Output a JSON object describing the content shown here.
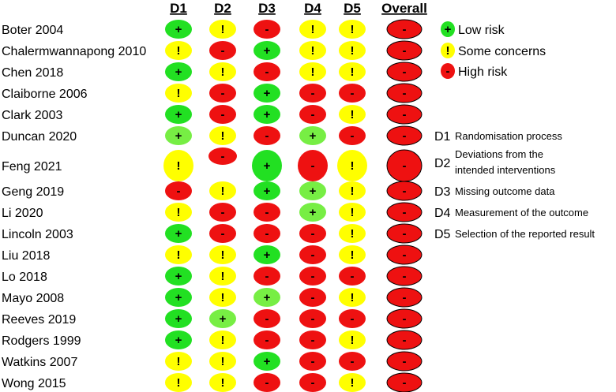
{
  "chart_data": {
    "type": "table",
    "columns": [
      "D1",
      "D2",
      "D3",
      "D4",
      "D5",
      "Overall"
    ],
    "studies": [
      {
        "name": "Boter 2004",
        "judgements": [
          "low",
          "some",
          "high",
          "some",
          "some",
          "high"
        ]
      },
      {
        "name": "Chalermwannapong 2010",
        "judgements": [
          "some",
          "high",
          "low",
          "some",
          "some",
          "high"
        ]
      },
      {
        "name": "Chen 2018",
        "judgements": [
          "low",
          "some",
          "high",
          "some",
          "some",
          "high"
        ]
      },
      {
        "name": "Claiborne 2006",
        "judgements": [
          "some",
          "high",
          "low",
          "high",
          "high",
          "high"
        ]
      },
      {
        "name": "Clark 2003",
        "judgements": [
          "low",
          "high",
          "low",
          "high",
          "some",
          "high"
        ]
      },
      {
        "name": "Duncan 2020",
        "judgements": [
          "low",
          "some",
          "high",
          "low",
          "high",
          "high"
        ]
      },
      {
        "name": "Feng 2021",
        "judgements": [
          "some",
          "high",
          "low",
          "high",
          "some",
          "high"
        ]
      },
      {
        "name": "Geng 2019",
        "judgements": [
          "high",
          "some",
          "low",
          "low",
          "some",
          "high"
        ]
      },
      {
        "name": "Li 2020",
        "judgements": [
          "some",
          "high",
          "high",
          "low",
          "some",
          "high"
        ]
      },
      {
        "name": "Lincoln 2003",
        "judgements": [
          "low",
          "high",
          "high",
          "high",
          "some",
          "high"
        ]
      },
      {
        "name": "Liu 2018",
        "judgements": [
          "some",
          "some",
          "low",
          "high",
          "some",
          "high"
        ]
      },
      {
        "name": "Lo 2018",
        "judgements": [
          "low",
          "some",
          "high",
          "high",
          "high",
          "high"
        ]
      },
      {
        "name": "Mayo 2008",
        "judgements": [
          "low",
          "some",
          "low",
          "high",
          "some",
          "high"
        ]
      },
      {
        "name": "Reeves 2019",
        "judgements": [
          "low",
          "low",
          "high",
          "high",
          "high",
          "high"
        ]
      },
      {
        "name": "Rodgers 1999",
        "judgements": [
          "low",
          "some",
          "high",
          "high",
          "some",
          "high"
        ]
      },
      {
        "name": "Watkins 2007",
        "judgements": [
          "some",
          "some",
          "low",
          "high",
          "high",
          "high"
        ]
      },
      {
        "name": "Wong 2015",
        "judgements": [
          "some",
          "some",
          "high",
          "high",
          "some",
          "high"
        ]
      }
    ],
    "legend": [
      {
        "key": "low",
        "label": "Low risk",
        "symbol": "+",
        "color": "#22e022"
      },
      {
        "key": "some",
        "label": "Some concerns",
        "symbol": "!",
        "color": "#ffff00"
      },
      {
        "key": "high",
        "label": "High risk",
        "symbol": "-",
        "color": "#ee1111"
      }
    ],
    "domains": [
      {
        "code": "D1",
        "lines": [
          "Randomisation process"
        ]
      },
      {
        "code": "D2",
        "lines": [
          "Deviations from the",
          "intended interventions"
        ]
      },
      {
        "code": "D3",
        "lines": [
          "Missing outcome data"
        ]
      },
      {
        "code": "D4",
        "lines": [
          "Measurement of the outcome"
        ]
      },
      {
        "code": "D5",
        "lines": [
          "Selection of the reported result"
        ]
      }
    ],
    "colors": {
      "low": "#22e022",
      "low_light": "#77ee44",
      "some": "#ffff00",
      "high": "#ee1111",
      "outline": "#000000"
    }
  }
}
